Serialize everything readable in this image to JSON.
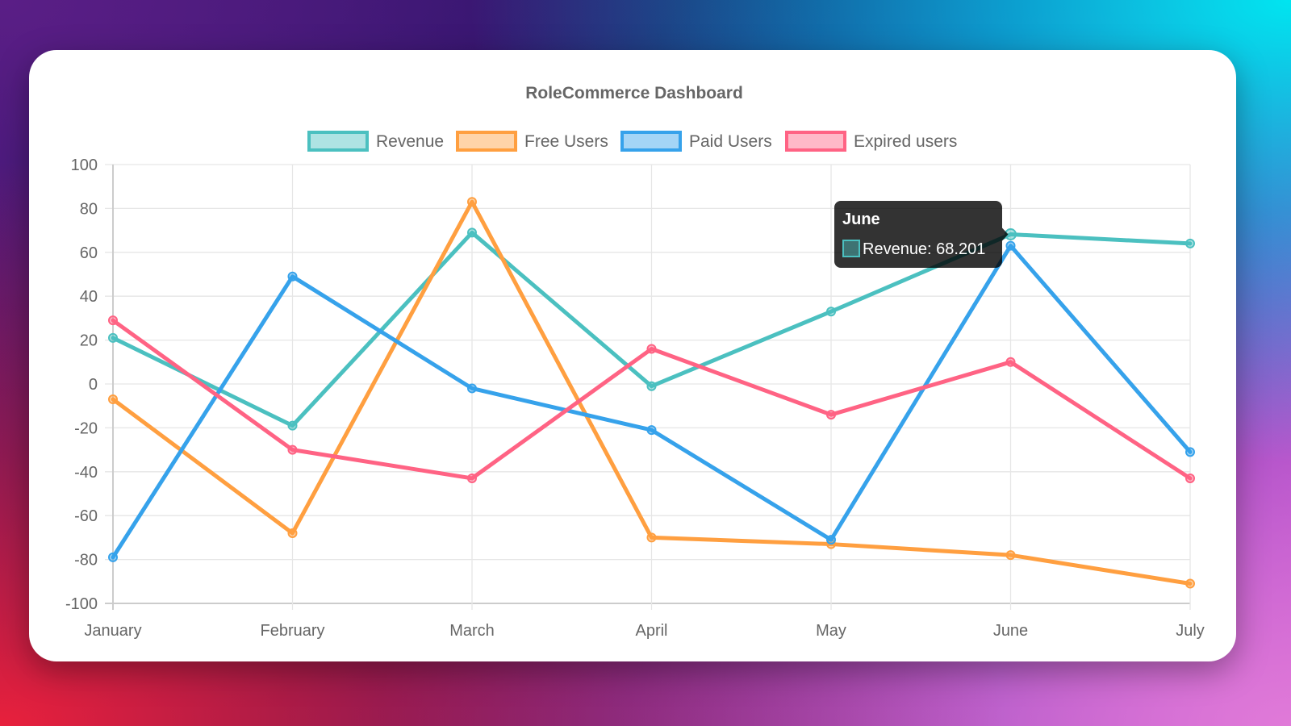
{
  "chart_data": {
    "type": "line",
    "title": "RoleCommerce Dashboard",
    "categories": [
      "January",
      "February",
      "March",
      "April",
      "May",
      "June",
      "July"
    ],
    "xlabel": "",
    "ylabel": "",
    "ylim": [
      -100,
      100
    ],
    "yticks": [
      100,
      80,
      60,
      40,
      20,
      0,
      -20,
      -40,
      -60,
      -80,
      -100
    ],
    "grid": true,
    "legend_position": "top",
    "series": [
      {
        "name": "Revenue",
        "color": "#4bc0c0",
        "fill": "rgba(75,192,192,0.45)",
        "values": [
          21,
          -19,
          69,
          -1,
          33,
          68.201,
          64
        ]
      },
      {
        "name": "Free Users",
        "color": "#ff9f40",
        "fill": "rgba(255,159,64,0.45)",
        "values": [
          -7,
          -68,
          83,
          -70,
          -73,
          -78,
          -91
        ]
      },
      {
        "name": "Paid Users",
        "color": "#36a2eb",
        "fill": "rgba(54,162,235,0.45)",
        "values": [
          -79,
          49,
          -2,
          -21,
          -71,
          63,
          -31
        ]
      },
      {
        "name": "Expired users",
        "color": "#ff6384",
        "fill": "rgba(255,99,132,0.45)",
        "values": [
          29,
          -30,
          -43,
          16,
          -14,
          10,
          -43
        ]
      }
    ],
    "tooltip": {
      "title": "June",
      "label": "Revenue: 68.201",
      "series_index": 0,
      "category_index": 5
    }
  }
}
